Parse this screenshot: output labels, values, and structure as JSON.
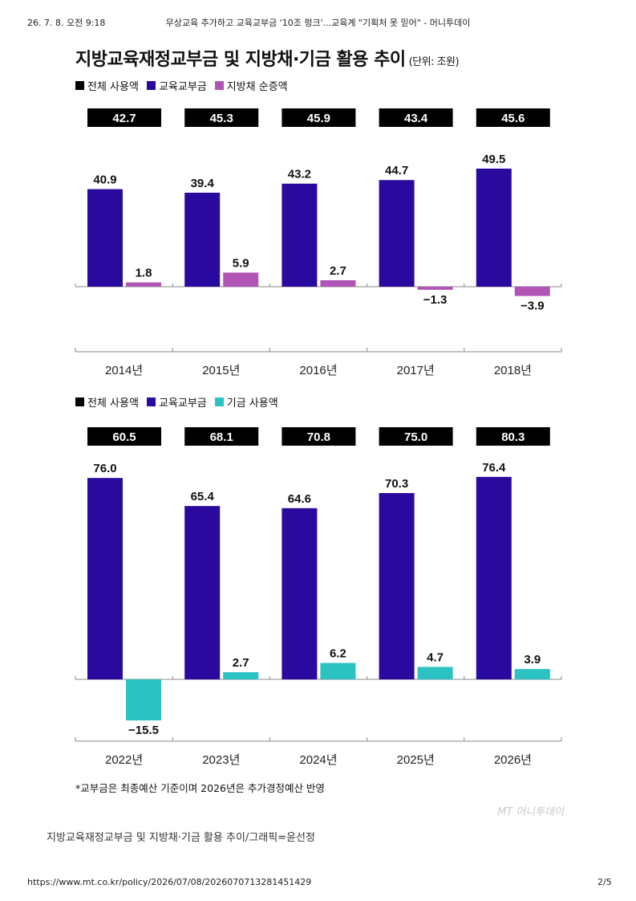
{
  "header": {
    "date": "26. 7. 8. 오전 9:18",
    "title": "무상교육 추가하고 교육교부금 '10조 펑크'...교육계 \"기획처 못 믿어\" - 머니투데이"
  },
  "figure": {
    "title": "지방교육재정교부금 및 지방채·기금 활용 추이",
    "unit": "(단위: 조원)",
    "watermark": "MT 머니투데이"
  },
  "colors": {
    "total": "#000000",
    "grant": "#2a0a9e",
    "bond": "#b054b6",
    "fund": "#2cc2c4"
  },
  "chart_data": [
    {
      "type": "bar",
      "legend": [
        "전체 사용액",
        "교육교부금",
        "지방채 순증액"
      ],
      "categories": [
        "2014년",
        "2015년",
        "2016년",
        "2017년",
        "2018년"
      ],
      "series": [
        {
          "name": "전체 사용액",
          "values": [
            42.7,
            45.3,
            45.9,
            43.4,
            45.6
          ]
        },
        {
          "name": "교육교부금",
          "values": [
            40.9,
            39.4,
            43.2,
            44.7,
            49.5
          ]
        },
        {
          "name": "지방채 순증액",
          "values": [
            1.8,
            5.9,
            2.7,
            -1.3,
            -3.9
          ]
        }
      ]
    },
    {
      "type": "bar",
      "legend": [
        "전체 사용액",
        "교육교부금",
        "기금 사용액"
      ],
      "categories": [
        "2022년",
        "2023년",
        "2024년",
        "2025년",
        "2026년"
      ],
      "series": [
        {
          "name": "전체 사용액",
          "values": [
            60.5,
            68.1,
            70.8,
            75.0,
            80.3
          ]
        },
        {
          "name": "교육교부금",
          "values": [
            76.0,
            65.4,
            64.6,
            70.3,
            76.4
          ]
        },
        {
          "name": "기금 사용액",
          "values": [
            -15.5,
            2.7,
            6.2,
            4.7,
            3.9
          ]
        }
      ]
    }
  ],
  "footnote": "*교부금은 최종예산 기준이며 2026년은 추가경정예산 반영",
  "caption": "지방교육재정교부금 및 지방채·기금 활용 추이/그래픽=윤선정",
  "footer": {
    "url": "https://www.mt.co.kr/policy/2026/07/08/2026070713281451429",
    "page": "2/5"
  }
}
